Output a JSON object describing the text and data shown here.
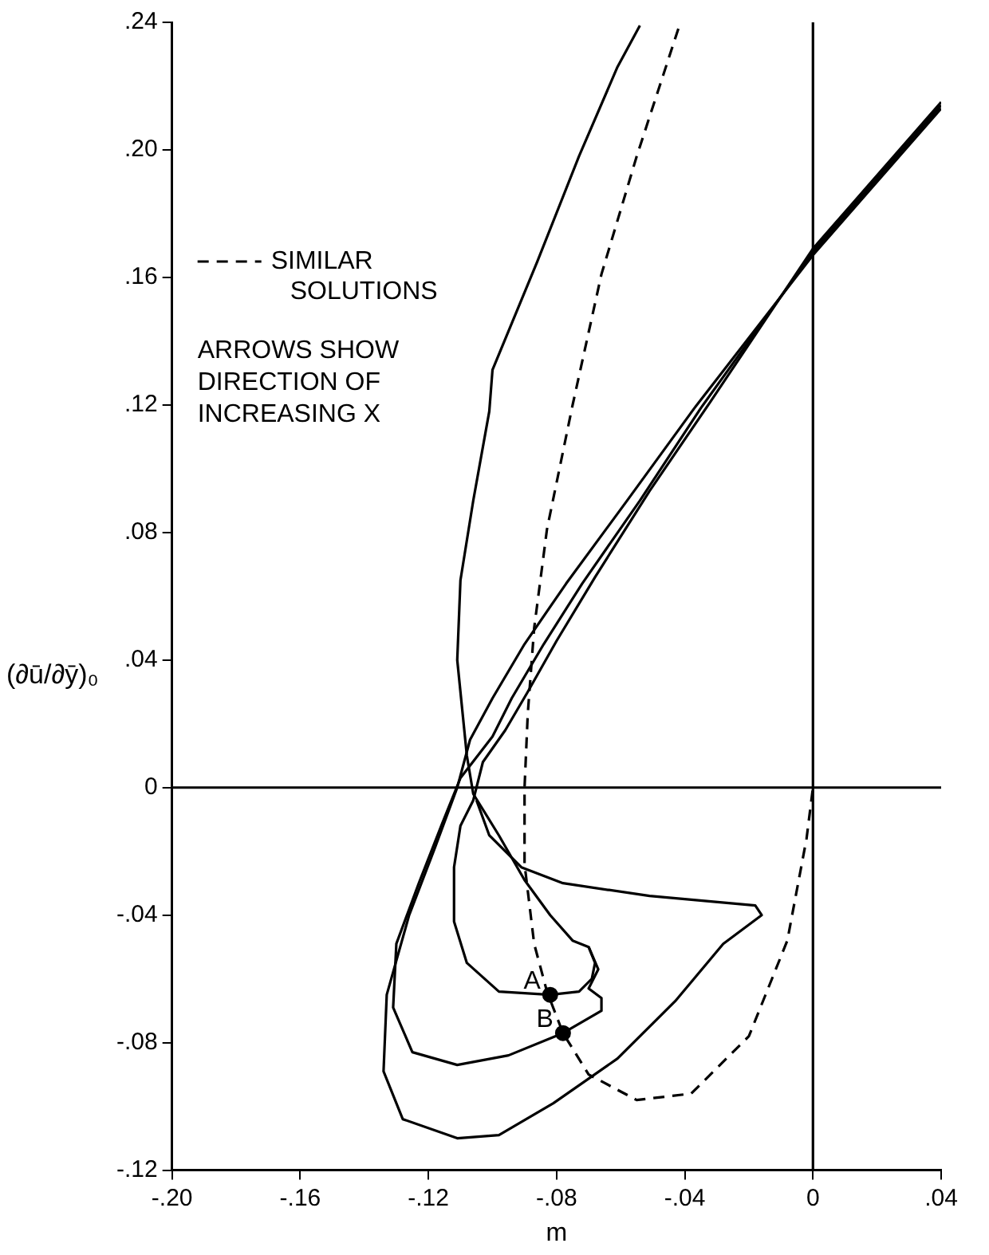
{
  "chart_data": {
    "type": "line",
    "xlabel": "m",
    "ylabel": "(∂ū/∂ȳ)₀",
    "xlim": [
      -0.2,
      0.04
    ],
    "xticks": [
      {
        "value": -0.2,
        "label": "-.20"
      },
      {
        "value": -0.16,
        "label": "-.16"
      },
      {
        "value": -0.12,
        "label": "-.12"
      },
      {
        "value": -0.08,
        "label": "-.08"
      },
      {
        "value": -0.04,
        "label": "-.04"
      },
      0,
      {
        "value": 0.04,
        "label": ".04"
      }
    ],
    "ylim": [
      -0.12,
      0.24
    ],
    "yticks": [
      {
        "value": -0.12,
        "label": "-.12"
      },
      {
        "value": -0.08,
        "label": "-.08"
      },
      {
        "value": -0.04,
        "label": "-.04"
      },
      0,
      {
        "value": 0.04,
        "label": ".04"
      },
      {
        "value": 0.08,
        "label": ".08"
      },
      {
        "value": 0.12,
        "label": ".12"
      },
      {
        "value": 0.16,
        "label": ".16"
      },
      {
        "value": 0.2,
        "label": ".20"
      },
      {
        "value": 0.24,
        "label": ".24"
      }
    ],
    "grid": false,
    "legend": "top left",
    "marker": "none",
    "line_style": "solid",
    "annotations": [
      "ARROWS SHOW DIRECTION OF INCREASING X",
      {
        "text": "A",
        "x": -0.082,
        "y": -0.065
      },
      {
        "text": "B",
        "x": -0.078,
        "y": -0.077
      }
    ],
    "series": [
      {
        "name": "SIMILAR SOLUTIONS",
        "color": "#000000",
        "line_style": "dashed",
        "x": [
          -0.042,
          -0.055,
          -0.066,
          -0.075,
          -0.083,
          -0.087,
          -0.089,
          -0.09,
          -0.09,
          -0.087,
          -0.083,
          -0.078,
          -0.07,
          -0.055,
          -0.038,
          -0.02,
          -0.008,
          -0.002,
          0
        ],
        "values": [
          0.238,
          0.198,
          0.161,
          0.12,
          0.081,
          0.05,
          0.023,
          0,
          -0.024,
          -0.049,
          -0.064,
          -0.077,
          -0.09,
          -0.098,
          -0.096,
          -0.078,
          -0.048,
          -0.016,
          0
        ]
      },
      {
        "color": "#000000",
        "x": [
          -0.054,
          -0.061,
          -0.073,
          -0.086,
          -0.1,
          -0.101,
          -0.106,
          -0.11,
          -0.111,
          -0.108,
          -0.106,
          -0.098,
          -0.09,
          -0.082,
          -0.075,
          -0.07,
          -0.068,
          -0.069,
          -0.073,
          -0.082
        ],
        "values": [
          0.239,
          0.226,
          0.198,
          0.165,
          0.131,
          0.118,
          0.09,
          0.065,
          0.04,
          0.01,
          -0.002,
          -0.015,
          -0.029,
          -0.04,
          -0.048,
          -0.05,
          -0.055,
          -0.06,
          -0.064,
          -0.065
        ]
      },
      {
        "color": "#000000",
        "x": [
          -0.082,
          -0.098,
          -0.108,
          -0.112,
          -0.112,
          -0.11,
          -0.106,
          -0.103,
          -0.096,
          -0.089,
          -0.08,
          -0.068,
          -0.051,
          -0.032,
          0,
          0.04
        ],
        "values": [
          -0.065,
          -0.064,
          -0.055,
          -0.042,
          -0.025,
          -0.012,
          -0.004,
          0.008,
          0.018,
          0.03,
          0.046,
          0.066,
          0.093,
          0.121,
          0.169,
          0.215
        ]
      },
      {
        "color": "#000000",
        "x": [
          -0.07,
          -0.067,
          -0.07,
          -0.066,
          -0.066,
          -0.078,
          -0.095,
          -0.111,
          -0.125,
          -0.131,
          -0.13,
          -0.123,
          -0.116,
          -0.11,
          -0.1,
          -0.094,
          -0.084,
          -0.072,
          -0.054,
          -0.035,
          0,
          0.04
        ],
        "values": [
          -0.05,
          -0.057,
          -0.063,
          -0.066,
          -0.07,
          -0.077,
          -0.084,
          -0.087,
          -0.083,
          -0.069,
          -0.049,
          -0.03,
          -0.012,
          0.003,
          0.016,
          0.028,
          0.045,
          0.064,
          0.09,
          0.119,
          0.168,
          0.214
        ]
      },
      {
        "color": "#000000",
        "x": [
          -0.105,
          -0.101,
          -0.091,
          -0.078,
          -0.051,
          -0.018,
          -0.016,
          -0.028,
          -0.043,
          -0.061,
          -0.081,
          -0.098,
          -0.111,
          -0.128,
          -0.134,
          -0.133,
          -0.126,
          -0.118,
          -0.111,
          -0.107,
          -0.1,
          -0.09,
          -0.077,
          -0.058,
          -0.037,
          0,
          0.04
        ],
        "values": [
          -0.004,
          -0.015,
          -0.025,
          -0.03,
          -0.034,
          -0.037,
          -0.04,
          -0.049,
          -0.067,
          -0.085,
          -0.099,
          -0.109,
          -0.11,
          -0.104,
          -0.089,
          -0.065,
          -0.04,
          -0.019,
          0,
          0.015,
          0.028,
          0.045,
          0.064,
          0.09,
          0.119,
          0.167,
          0.213
        ]
      },
      {
        "color": "#000000",
        "x": [
          -0.2,
          0.04
        ],
        "values": [
          0,
          0
        ]
      },
      {
        "color": "#000000",
        "x": [
          0,
          0
        ],
        "values": [
          -0.12,
          0.24
        ]
      },
      {
        "type": "scatter",
        "color": "#000000",
        "marker": "circle",
        "x": [
          -0.082,
          -0.078
        ],
        "values": [
          -0.065,
          -0.077
        ]
      }
    ]
  }
}
